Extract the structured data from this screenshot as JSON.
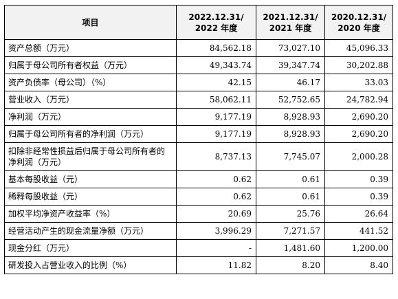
{
  "table": {
    "headers": {
      "item": "项目",
      "years": [
        {
          "line1": "2022.12.31/",
          "line2": "2022 年度"
        },
        {
          "line1": "2021.12.31/",
          "line2": "2021 年度"
        },
        {
          "line1": "2020.12.31/",
          "line2": "2020 年度"
        }
      ]
    },
    "rows": [
      {
        "label": "资产总额（万元）",
        "values": [
          "84,562.18",
          "73,027.10",
          "45,096.33"
        ]
      },
      {
        "label": "归属于母公司所有者权益（万元）",
        "values": [
          "49,343.74",
          "39,347.74",
          "30,202.88"
        ]
      },
      {
        "label": "资产负债率（母公司）（%）",
        "values": [
          "42.15",
          "46.17",
          "33.03"
        ]
      },
      {
        "label": "营业收入（万元）",
        "values": [
          "58,062.11",
          "52,752.65",
          "24,782.94"
        ]
      },
      {
        "label": "净利润（万元）",
        "values": [
          "9,177.19",
          "8,928.93",
          "2,690.20"
        ]
      },
      {
        "label": "归属于母公司所有者的净利润（万元）",
        "values": [
          "9,177.19",
          "8,928.93",
          "2,690.20"
        ]
      },
      {
        "label": "扣除非经常性损益后归属于母公司所有者的净利润（万元）",
        "values": [
          "8,737.13",
          "7,745.07",
          "2,000.28"
        ]
      },
      {
        "label": "基本每股收益（元）",
        "values": [
          "0.62",
          "0.61",
          "0.39"
        ]
      },
      {
        "label": "稀释每股收益（元）",
        "values": [
          "0.62",
          "0.61",
          "0.39"
        ]
      },
      {
        "label": "加权平均净资产收益率（%）",
        "values": [
          "20.69",
          "25.76",
          "26.64"
        ]
      },
      {
        "label": "经营活动产生的现金流量净额（万元）",
        "values": [
          "3,996.29",
          "7,271.57",
          "441.52"
        ]
      },
      {
        "label": "现金分红（万元）",
        "values": [
          "-",
          "1,481.60",
          "1,200.00"
        ]
      },
      {
        "label": "研发投入占营业收入的比例（%）",
        "values": [
          "11.82",
          "8.20",
          "8.40"
        ]
      }
    ]
  }
}
